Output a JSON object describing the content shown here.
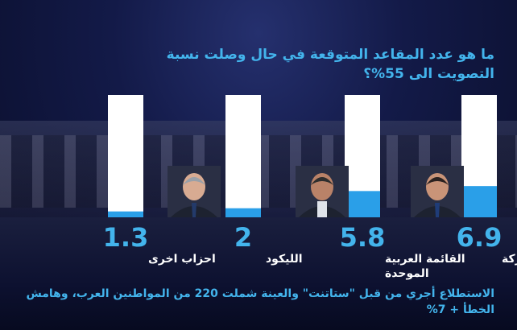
{
  "title": "ما هو عدد المقاعد المتوقعة في حال وصلت نسبة التصويت الى 55%؟",
  "footnote": "الاستطلاع أجري من قبل \"ستاتنت\" والعينة شملت 220 من المواطنين العرب، وهامش الخطأ + 7%",
  "colors": {
    "accent": "#43b4ec",
    "bar_track": "#ffffff",
    "bar_fill": "#2a9fe8",
    "value_text": "#43b4ec",
    "label_text": "#ffffff"
  },
  "chart_data": {
    "type": "bar",
    "title": "ما هو عدد المقاعد المتوقعة في حال وصلت نسبة التصويت الى 55%؟",
    "categories": [
      "القائمة المشتركة",
      "القائمة العربية الموحدة",
      "الليكود",
      "احزاب اخرى"
    ],
    "values": [
      6.9,
      5.8,
      2,
      1.3
    ],
    "value_labels": [
      "6.9",
      "5.8",
      "2",
      "1.3"
    ],
    "ylim": [
      0,
      27
    ],
    "grid": false,
    "legend": "none"
  }
}
